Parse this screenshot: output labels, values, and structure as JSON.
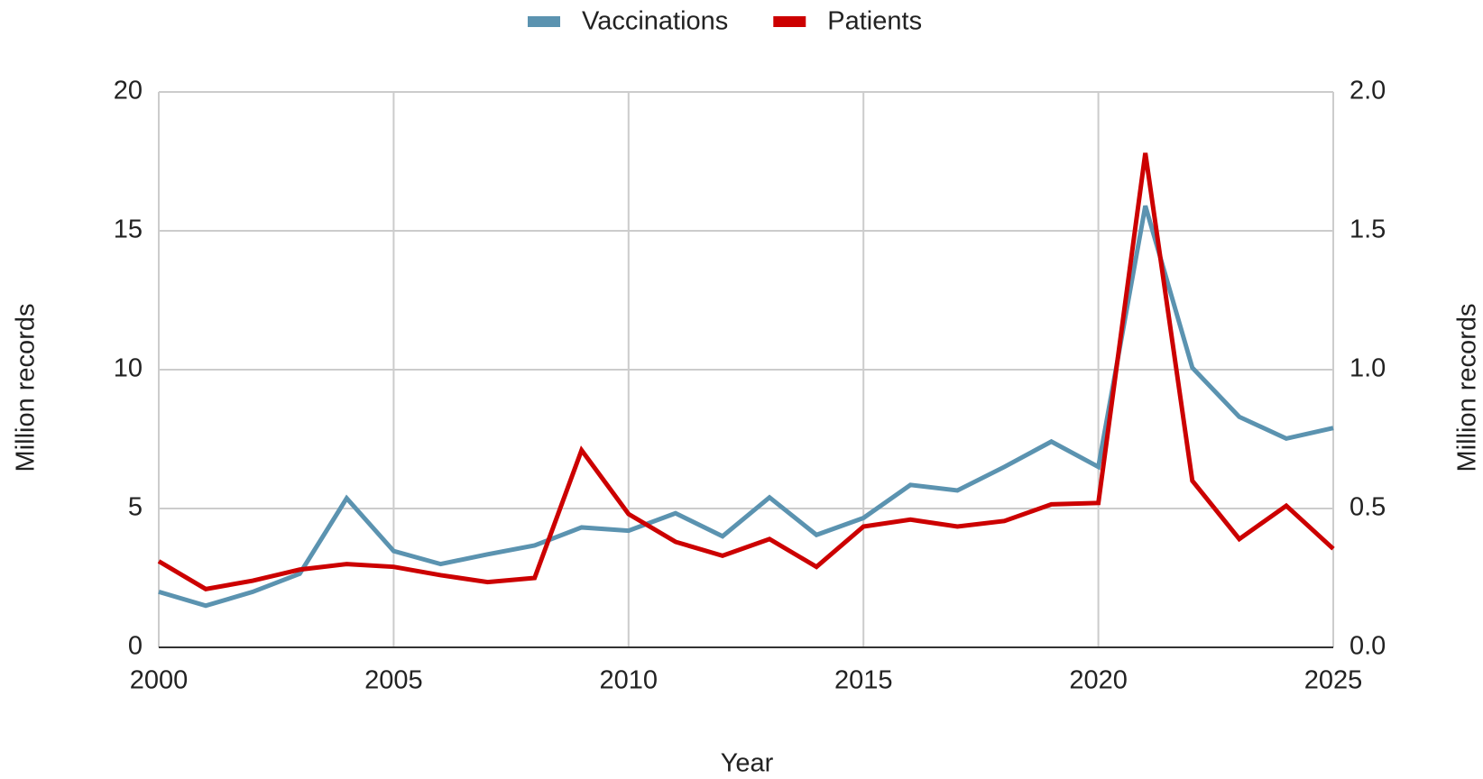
{
  "chart_data": {
    "type": "line",
    "xlabel": "Year",
    "ylabel": "Million records",
    "y2label": "Million records",
    "x": [
      2000,
      2001,
      2002,
      2003,
      2004,
      2005,
      2006,
      2007,
      2008,
      2009,
      2010,
      2011,
      2012,
      2013,
      2014,
      2015,
      2016,
      2017,
      2018,
      2019,
      2020,
      2021,
      2022,
      2023,
      2024,
      2025
    ],
    "series": [
      {
        "name": "Vaccinations",
        "color": "#5b93b0",
        "values": [
          2.0,
          1.5,
          2.0,
          2.65,
          5.37,
          3.47,
          3.0,
          3.35,
          3.67,
          4.32,
          4.2,
          4.83,
          4.0,
          5.4,
          4.05,
          4.66,
          5.85,
          5.65,
          6.5,
          7.41,
          6.5,
          15.9,
          10.07,
          8.3,
          7.52,
          7.9
        ]
      },
      {
        "name": "Patients",
        "color": "#cc0000",
        "axis": "y2",
        "values": [
          0.31,
          0.21,
          0.24,
          0.28,
          0.3,
          0.29,
          0.26,
          0.235,
          0.25,
          0.71,
          0.48,
          0.38,
          0.33,
          0.39,
          0.29,
          0.435,
          0.46,
          0.435,
          0.455,
          0.515,
          0.52,
          1.78,
          0.6,
          0.39,
          0.51,
          0.355
        ]
      }
    ],
    "xlim": [
      2000,
      2025
    ],
    "xticks": [
      2000,
      2005,
      2010,
      2015,
      2020,
      2025
    ],
    "ylim": [
      0,
      20
    ],
    "yticks": [
      0,
      5,
      10,
      15,
      20
    ],
    "y2lim": [
      0,
      2
    ],
    "y2ticks": [
      {
        "value": 0,
        "label": "0.0"
      },
      {
        "value": 0.5,
        "label": "0.5"
      },
      {
        "value": 1,
        "label": "1.0"
      },
      {
        "value": 1.5,
        "label": "1.5"
      },
      {
        "value": 2,
        "label": "2.0"
      }
    ],
    "grid": true,
    "legend": "top"
  }
}
